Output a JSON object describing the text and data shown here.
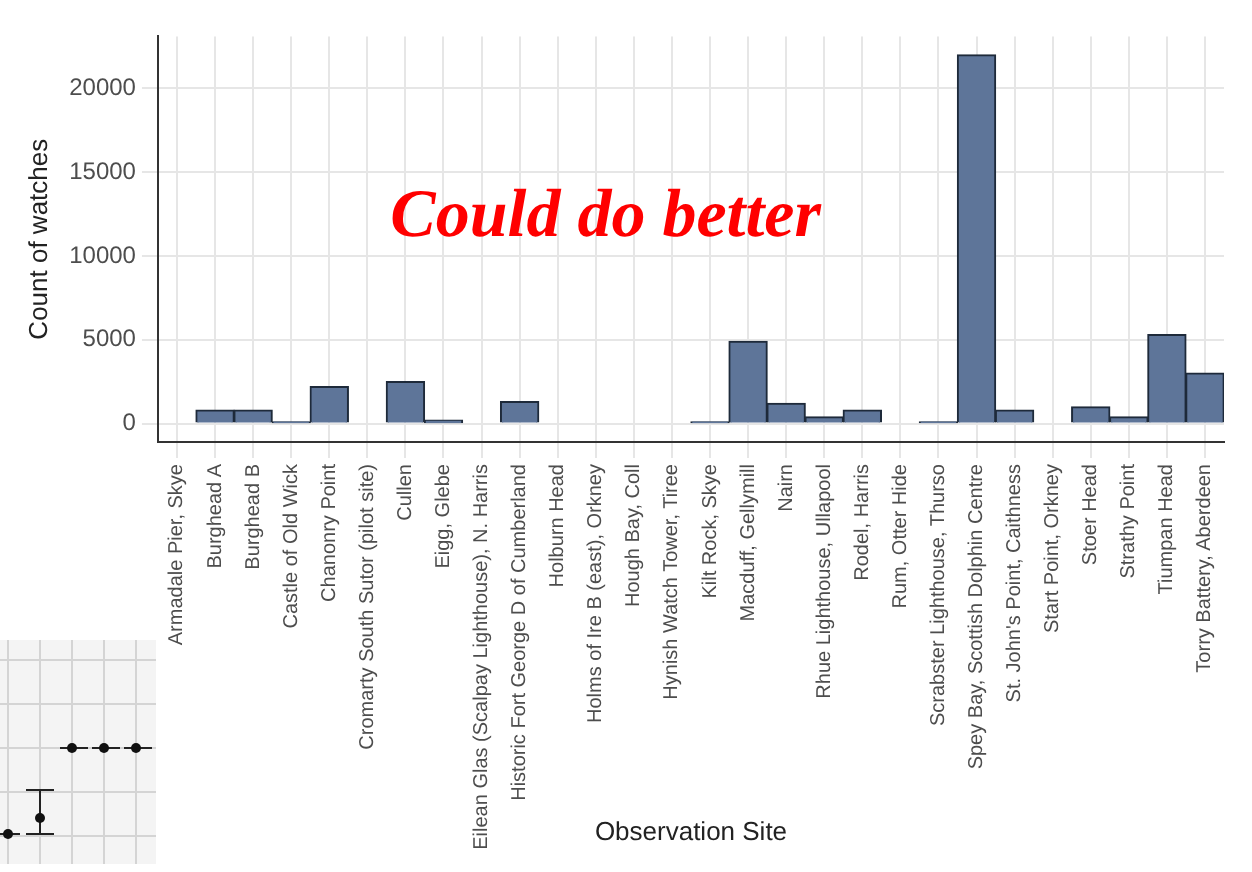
{
  "chart_data": {
    "type": "bar",
    "xlabel": "Observation Site",
    "ylabel": "Count of watches",
    "categories": [
      "Armadale Pier, Skye",
      "Burghead A",
      "Burghead B",
      "Castle of Old Wick",
      "Chanonry Point",
      "Cromarty South Sutor (pilot site)",
      "Cullen",
      "Eigg, Glebe",
      "Eilean Glas (Scalpay Lighthouse), N. Harris",
      "Historic Fort George D of Cumberland",
      "Holburn Head",
      "Holms of Ire B (east), Orkney",
      "Hough Bay, Coll",
      "Hynish Watch Tower, Tiree",
      "Kilt Rock, Skye",
      "Macduff, Gellymill",
      "Nairn",
      "Rhue Lighthouse, Ullapool",
      "Rodel, Harris",
      "Rum, Otter Hide",
      "Scrabster Lighthouse, Thurso",
      "Spey Bay, Scottish Dolphin Centre",
      "St. John's Point, Caithness",
      "Start Point, Orkney",
      "Stoer Head",
      "Strathy Point",
      "Tiumpan Head",
      "Torry Battery, Aberdeen"
    ],
    "values": [
      0,
      800,
      800,
      100,
      2200,
      0,
      2500,
      200,
      0,
      1300,
      0,
      0,
      0,
      0,
      100,
      4900,
      1200,
      400,
      800,
      0,
      100,
      22000,
      800,
      0,
      1000,
      400,
      5300,
      3000
    ],
    "color": "#5e7599",
    "ylim": [
      -1100,
      23100
    ],
    "yticks": [
      0,
      5000,
      10000,
      15000,
      20000
    ],
    "grid": true,
    "annotations": [
      "Could do better"
    ]
  }
}
